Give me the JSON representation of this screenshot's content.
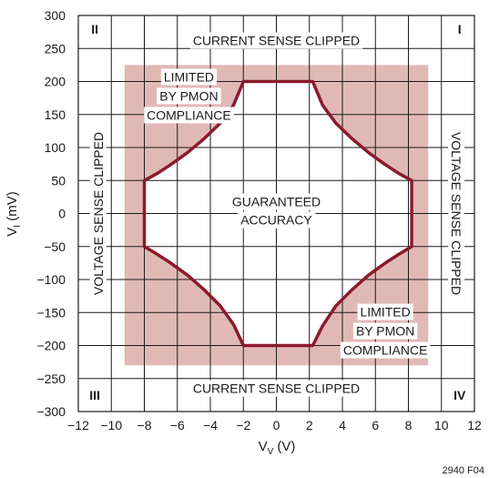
{
  "chart_data": {
    "type": "area",
    "xlabel_main": "V",
    "xlabel_sub": "V",
    "xlabel_unit": " (V)",
    "ylabel_main": "V",
    "ylabel_sub": "I",
    "ylabel_unit": " (mV)",
    "xlim": [
      -12,
      12
    ],
    "ylim": [
      -300,
      300
    ],
    "x_ticks": [
      -12,
      -10,
      -8,
      -6,
      -4,
      -2,
      0,
      2,
      4,
      6,
      8,
      10,
      12
    ],
    "x_tick_labels": [
      "−12",
      "−10",
      "−8",
      "−6",
      "−4",
      "−2",
      "0",
      "2",
      "4",
      "6",
      "8",
      "10",
      "12"
    ],
    "y_ticks": [
      300,
      250,
      200,
      150,
      100,
      50,
      0,
      -50,
      -100,
      -150,
      -200,
      -250,
      -300
    ],
    "y_tick_labels": [
      "300",
      "250",
      "200",
      "150",
      "100",
      "50",
      "0",
      "−50",
      "−100",
      "−150",
      "−200",
      "−250",
      "−300"
    ],
    "grid": true,
    "shaded_region": {
      "x": [
        -9.2,
        9.2
      ],
      "y": [
        -230,
        225
      ],
      "color": "#e0b9b6"
    },
    "accuracy_boundary": {
      "color": "#8b1a2c",
      "points": [
        [
          -2,
          200
        ],
        [
          2.2,
          200
        ],
        [
          2.8,
          164
        ],
        [
          3.6,
          137
        ],
        [
          4.6,
          113
        ],
        [
          5.6,
          92
        ],
        [
          6.6,
          74
        ],
        [
          7.4,
          61
        ],
        [
          8.2,
          50
        ],
        [
          8.2,
          -50
        ],
        [
          7.4,
          -62
        ],
        [
          6.6,
          -75
        ],
        [
          5.6,
          -93
        ],
        [
          4.6,
          -115
        ],
        [
          3.6,
          -140
        ],
        [
          2.8,
          -170
        ],
        [
          2.2,
          -200
        ],
        [
          -2,
          -200
        ],
        [
          -2.6,
          -168
        ],
        [
          -3.4,
          -140
        ],
        [
          -4.4,
          -115
        ],
        [
          -5.4,
          -93
        ],
        [
          -6.4,
          -75
        ],
        [
          -7.2,
          -62
        ],
        [
          -8,
          -50
        ],
        [
          -8,
          50
        ],
        [
          -7.2,
          61
        ],
        [
          -6.4,
          74
        ],
        [
          -5.4,
          92
        ],
        [
          -4.4,
          113
        ],
        [
          -3.4,
          137
        ],
        [
          -2.6,
          164
        ],
        [
          -2,
          200
        ]
      ]
    },
    "annotations": {
      "current_top": "CURRENT SENSE CLIPPED",
      "current_bottom": "CURRENT SENSE CLIPPED",
      "voltage_left": "VOLTAGE SENSE CLIPPED",
      "voltage_right": "VOLTAGE SENSE CLIPPED",
      "guaranteed": [
        "GUARANTEED",
        "ACCURACY"
      ],
      "limited_top": [
        "LIMITED",
        "BY PMON",
        "COMPLIANCE"
      ],
      "limited_bottom": [
        "LIMITED",
        "BY PMON",
        "COMPLIANCE"
      ],
      "quadrant_1": "I",
      "quadrant_2": "II",
      "quadrant_3": "III",
      "quadrant_4": "IV"
    },
    "figure_id": "2940 F04"
  }
}
